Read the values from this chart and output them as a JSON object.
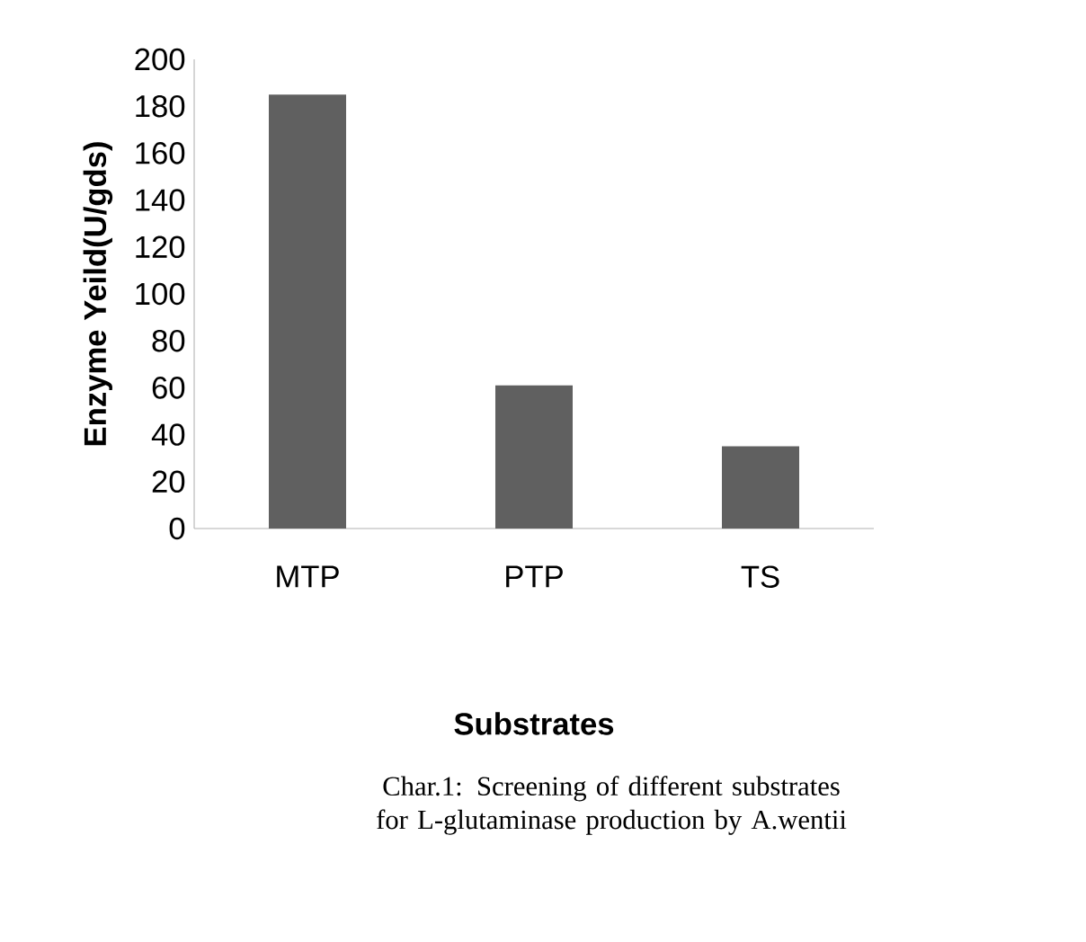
{
  "chart_data": {
    "type": "bar",
    "categories": [
      "MTP",
      "PTP",
      "TS"
    ],
    "values": [
      185,
      61,
      35
    ],
    "color": "#606060",
    "ylim": [
      0,
      200
    ],
    "yticks": [
      0,
      20,
      40,
      60,
      80,
      100,
      120,
      140,
      160,
      180,
      200
    ],
    "xlabel": "Substrates",
    "ylabel": "Enzyme Yeild(U/gds)",
    "annotations": [
      "Char.1: Screening of different substrates for L-glutaminase production by A.wentii"
    ]
  }
}
